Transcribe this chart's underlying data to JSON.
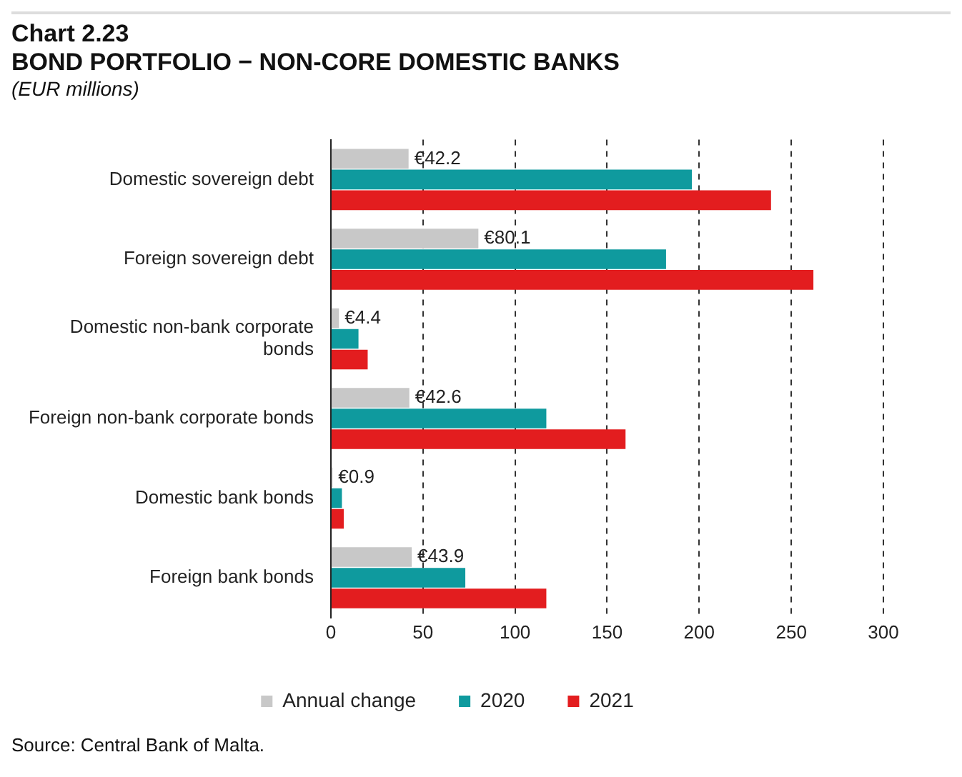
{
  "chart_data": {
    "type": "bar",
    "orientation": "horizontal",
    "title": "Chart 2.23",
    "subtitle": "BOND PORTFOLIO − NON-CORE DOMESTIC BANKS",
    "annotations": [
      "(EUR millions)",
      "Source: Central Bank of Malta."
    ],
    "categories": [
      "Domestic sovereign debt",
      "Foreign sovereign debt",
      "Domestic non-bank corporate bonds",
      "Foreign non-bank corporate bonds",
      "Domestic bank bonds",
      "Foreign bank bonds"
    ],
    "series": [
      {
        "name": "Annual change",
        "color": "#c8c8c8",
        "values": [
          42.2,
          80.1,
          4.4,
          42.6,
          0.9,
          43.9
        ],
        "value_labels": [
          "€42.2",
          "€80.1",
          "€4.4",
          "€42.6",
          "€0.9",
          "€43.9"
        ]
      },
      {
        "name": "2020",
        "color": "#0f9a9e",
        "values": [
          196,
          182,
          15,
          117,
          6,
          73
        ]
      },
      {
        "name": "2021",
        "color": "#e31d1f",
        "values": [
          239,
          262,
          20,
          160,
          7,
          117
        ]
      }
    ],
    "xlim": [
      0,
      300
    ],
    "xticks": [
      0,
      50,
      100,
      150,
      200,
      250,
      300
    ],
    "grid": "x",
    "legend": "bottom"
  }
}
